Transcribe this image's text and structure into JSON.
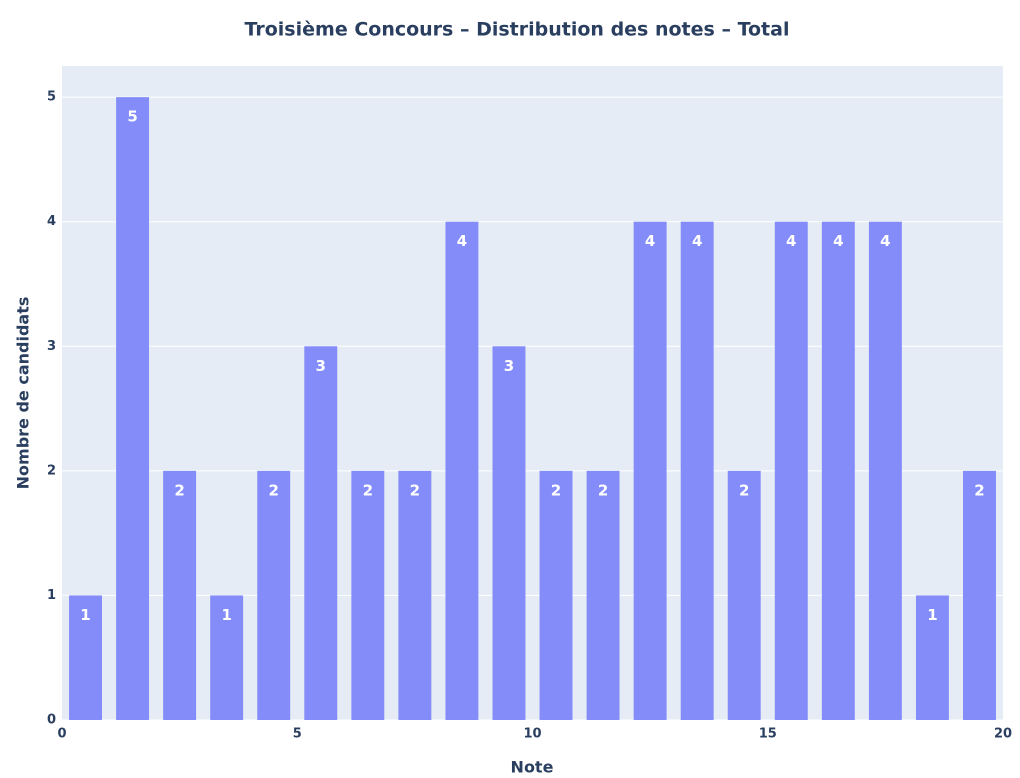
{
  "chart_data": {
    "type": "histogram",
    "title": "Troisième Concours – Distribution des notes – Total",
    "xlabel": "Note",
    "ylabel": "Nombre de candidats",
    "bins": [
      0,
      1,
      2,
      3,
      4,
      5,
      6,
      7,
      8,
      9,
      10,
      11,
      12,
      13,
      14,
      15,
      16,
      17,
      18,
      19,
      20
    ],
    "counts": [
      1,
      5,
      2,
      1,
      2,
      3,
      2,
      2,
      4,
      3,
      2,
      2,
      4,
      4,
      2,
      4,
      4,
      4,
      1,
      2
    ],
    "color": "#838cf9",
    "xlim": [
      0,
      20
    ],
    "xticks": [
      0,
      5,
      10,
      15,
      20
    ],
    "ylim": [
      0,
      5.25
    ],
    "yticks": [
      0,
      1,
      2,
      3,
      4,
      5
    ],
    "grid": true
  }
}
